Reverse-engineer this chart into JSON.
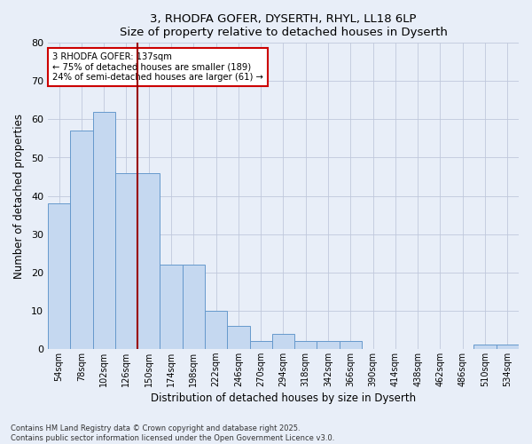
{
  "title": "3, RHODFA GOFER, DYSERTH, RHYL, LL18 6LP",
  "subtitle": "Size of property relative to detached houses in Dyserth",
  "xlabel": "Distribution of detached houses by size in Dyserth",
  "ylabel": "Number of detached properties",
  "categories": [
    "54sqm",
    "78sqm",
    "102sqm",
    "126sqm",
    "150sqm",
    "174sqm",
    "198sqm",
    "222sqm",
    "246sqm",
    "270sqm",
    "294sqm",
    "318sqm",
    "342sqm",
    "366sqm",
    "390sqm",
    "414sqm",
    "438sqm",
    "462sqm",
    "486sqm",
    "510sqm",
    "534sqm"
  ],
  "values": [
    38,
    57,
    62,
    46,
    46,
    22,
    22,
    10,
    6,
    2,
    4,
    2,
    2,
    2,
    0,
    0,
    0,
    0,
    0,
    1,
    1
  ],
  "bar_color": "#c5d8f0",
  "bar_edge_color": "#6699cc",
  "vline_x": 3.5,
  "vline_color": "#990000",
  "annotation_line1": "3 RHODFA GOFER: 137sqm",
  "annotation_line2": "← 75% of detached houses are smaller (189)",
  "annotation_line3": "24% of semi-detached houses are larger (61) →",
  "annotation_box_color": "#cc0000",
  "ylim": [
    0,
    80
  ],
  "yticks": [
    0,
    10,
    20,
    30,
    40,
    50,
    60,
    70,
    80
  ],
  "footer_line1": "Contains HM Land Registry data © Crown copyright and database right 2025.",
  "footer_line2": "Contains public sector information licensed under the Open Government Licence v3.0.",
  "bg_color": "#e8eef8",
  "plot_bg_color": "#e8eef8",
  "grid_color": "#c0c8dc"
}
